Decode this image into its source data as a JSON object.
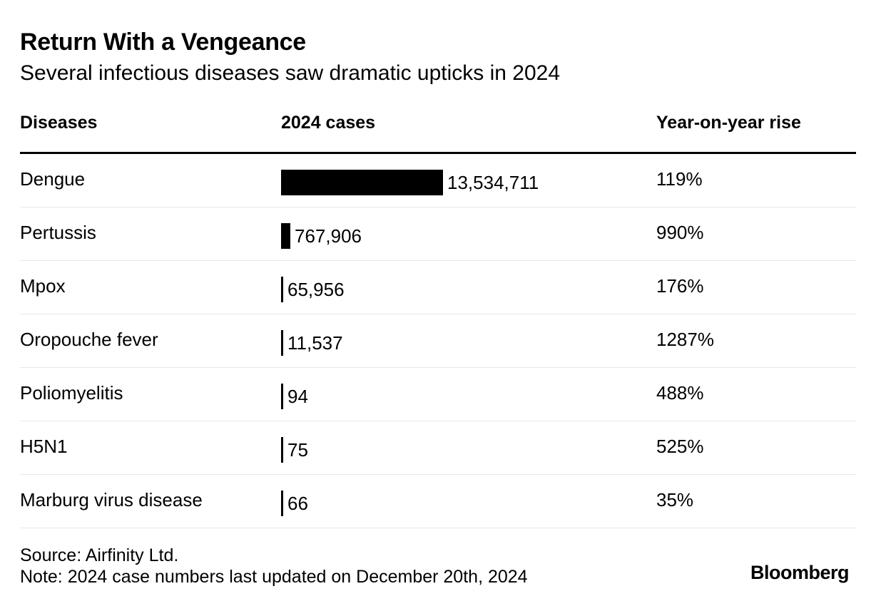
{
  "title": "Return With a Vengeance",
  "subtitle": "Several infectious diseases saw dramatic upticks in 2024",
  "columns": {
    "diseases": "Diseases",
    "cases": "2024 cases",
    "rise": "Year-on-year rise"
  },
  "chart_data": {
    "type": "table",
    "title": "Return With a Vengeance",
    "subtitle": "Several infectious diseases saw dramatic upticks in 2024",
    "rows": [
      {
        "disease": "Dengue",
        "cases": 13534711,
        "cases_label": "13,534,711",
        "rise": "119%"
      },
      {
        "disease": "Pertussis",
        "cases": 767906,
        "cases_label": "767,906",
        "rise": "990%"
      },
      {
        "disease": "Mpox",
        "cases": 65956,
        "cases_label": "65,956",
        "rise": "176%"
      },
      {
        "disease": "Oropouche fever",
        "cases": 11537,
        "cases_label": "11,537",
        "rise": "1287%"
      },
      {
        "disease": "Poliomyelitis",
        "cases": 94,
        "cases_label": "94",
        "rise": "488%"
      },
      {
        "disease": "H5N1",
        "cases": 75,
        "cases_label": "75",
        "rise": "525%"
      },
      {
        "disease": "Marburg virus disease",
        "cases": 66,
        "cases_label": "66",
        "rise": "35%"
      }
    ],
    "bar_color": "#000000"
  },
  "footer": {
    "source": "Source: Airfinity Ltd.",
    "note": "Note: 2024 case numbers last updated on December 20th, 2024",
    "brand": "Bloomberg"
  }
}
